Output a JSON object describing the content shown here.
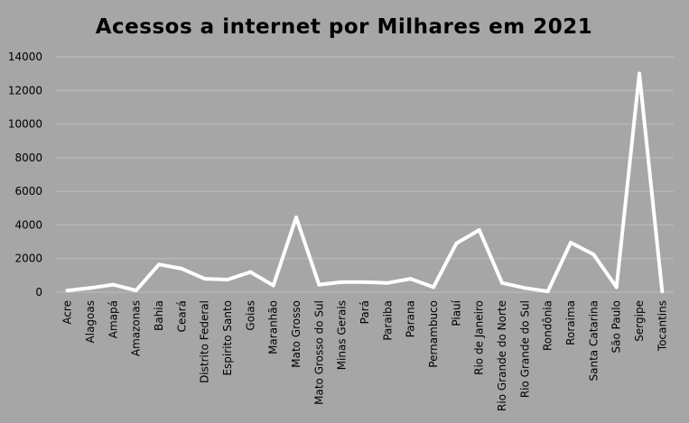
{
  "chart_data": {
    "type": "line",
    "title": "Acessos a internet por Milhares em 2021",
    "xlabel": "",
    "ylabel": "",
    "ylim": [
      0,
      14000
    ],
    "yticks": [
      "0",
      "2000",
      "4000",
      "6000",
      "8000",
      "10000",
      "12000",
      "14000"
    ],
    "grid": true,
    "legend": "none",
    "categories": [
      "Acre",
      "Alagoas",
      "Amapá",
      "Amazonas",
      "Bahia",
      "Ceará",
      "Distrito Federal",
      "Espirito Santo",
      "Goias",
      "Maranhão",
      "Mato Grosso",
      "Mato Grosso do Sul",
      "Minas Gerais",
      "Pará",
      "Paraiba",
      "Parana",
      "Pernambuco",
      "Piauí",
      "Rio de Janeiro",
      "Rio Grande do Norte",
      "Rio Grande do Sul",
      "Rondônia",
      "Roraima",
      "Santa Catarina",
      "São Paulo",
      "Sergipe",
      "Tocantins"
    ],
    "series": [
      {
        "values": [
          100,
          250,
          450,
          100,
          1650,
          1400,
          800,
          750,
          1200,
          400,
          4450,
          450,
          600,
          600,
          550,
          800,
          300,
          2900,
          3700,
          550,
          250,
          50,
          2950,
          2250,
          300,
          13000,
          50
        ]
      }
    ],
    "colors": {
      "background": "#a6a6a6",
      "line": "#ffffff",
      "grid": "#bdbdbd",
      "text": "#000000"
    }
  }
}
